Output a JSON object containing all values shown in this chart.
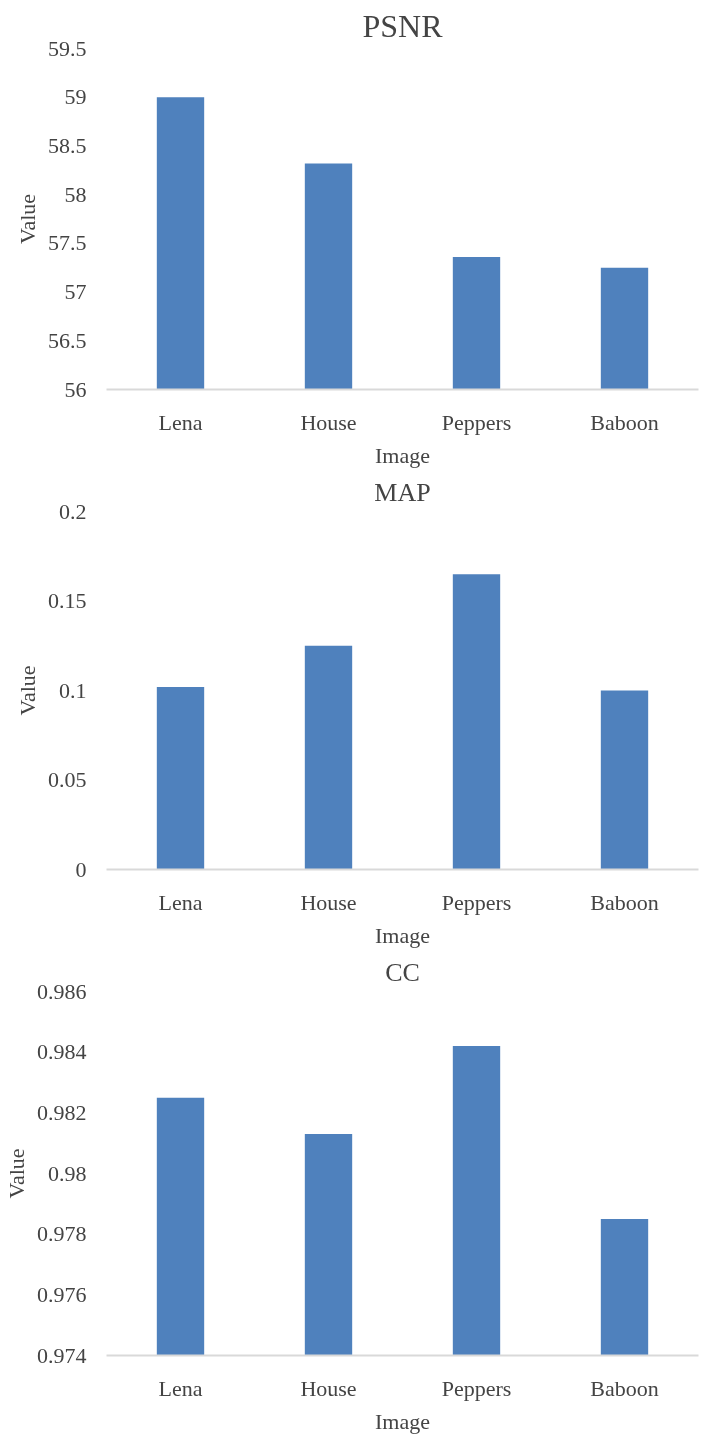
{
  "chart_data": [
    {
      "type": "bar",
      "title": "PSNR",
      "xlabel": "Image",
      "ylabel": "Value",
      "categories": [
        "Lena",
        "House",
        "Peppers",
        "Baboon"
      ],
      "values": [
        59.0,
        58.32,
        57.36,
        57.25
      ],
      "color": "#4f81bd",
      "ylim": [
        56,
        59.5
      ],
      "yticks": [
        56,
        {
          "value": 56.5,
          "label": "56.5"
        },
        57,
        {
          "value": 57.5,
          "label": "57.5"
        },
        58,
        {
          "value": 58.5,
          "label": "58.5"
        },
        59,
        {
          "value": 59.5,
          "label": "59.5"
        }
      ],
      "grid": false,
      "legend": false
    },
    {
      "type": "bar",
      "title": "MAP",
      "xlabel": "Image",
      "ylabel": "Value",
      "categories": [
        "Lena",
        "House",
        "Peppers",
        "Baboon"
      ],
      "values": [
        0.102,
        0.125,
        0.165,
        0.1
      ],
      "color": "#4f81bd",
      "ylim": [
        0,
        0.2
      ],
      "yticks": [
        0,
        0.05,
        0.1,
        0.15,
        0.2
      ],
      "grid": false,
      "legend": false
    },
    {
      "type": "bar",
      "title": "CC",
      "xlabel": "Image",
      "ylabel": "Value",
      "categories": [
        "Lena",
        "House",
        "Peppers",
        "Baboon"
      ],
      "values": [
        0.9825,
        0.9813,
        0.9842,
        0.9785
      ],
      "color": "#4f81bd",
      "ylim": [
        0.974,
        0.986
      ],
      "yticks": [
        0.974,
        0.976,
        0.978,
        0.98,
        0.982,
        0.984,
        0.986
      ],
      "grid": false,
      "legend": false
    }
  ]
}
